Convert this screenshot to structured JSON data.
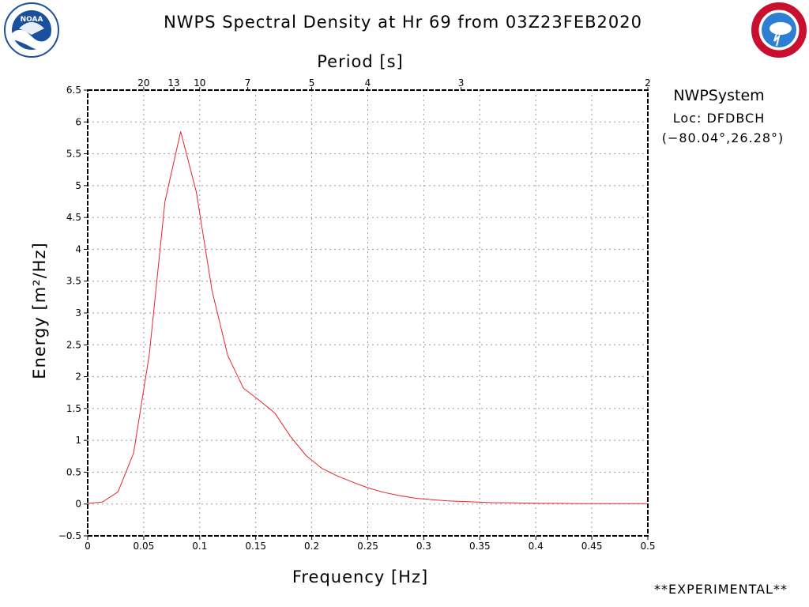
{
  "header": {
    "title": "NWPS Spectral Density at Hr 69 from 03Z23FEB2020"
  },
  "info": {
    "system": "NWPSystem",
    "location": "Loc: DFDBCH",
    "coordinates": "(−80.04°,26.28°)"
  },
  "footer": {
    "experimental": "**EXPERIMENTAL**"
  },
  "logos": {
    "left": {
      "icon": "noaa-logo-icon",
      "text": "NOAA",
      "color": "#1a4f9c"
    },
    "right": {
      "icon": "nws-logo-icon",
      "text": "NATIONAL WEATHER SERVICE",
      "color": "#c8102e"
    }
  },
  "colors": {
    "line": "#e8242b",
    "grid": "#9a9a9a",
    "frame": "#000000"
  },
  "chart_data": {
    "type": "line",
    "title": "NWPS Spectral Density at Hr 69 from 03Z23FEB2020",
    "xlabel": "Frequency [Hz]",
    "ylabel": "Energy [m²/Hz]",
    "top_axis_label": "Period [s]",
    "xlim": [
      0,
      0.5
    ],
    "ylim": [
      -0.5,
      6.5
    ],
    "x_ticks": [
      0,
      0.05,
      0.1,
      0.15,
      0.2,
      0.25,
      0.3,
      0.35,
      0.4,
      0.45,
      0.5
    ],
    "x_tick_labels": [
      "0",
      "0.05",
      "0.1",
      "0.15",
      "0.2",
      "0.25",
      "0.3",
      "0.35",
      "0.4",
      "0.45",
      "0.5"
    ],
    "y_ticks": [
      -0.5,
      0,
      0.5,
      1,
      1.5,
      2,
      2.5,
      3,
      3.5,
      4,
      4.5,
      5,
      5.5,
      6,
      6.5
    ],
    "y_tick_labels": [
      "−0.5",
      "0",
      "0.5",
      "1",
      "1.5",
      "2",
      "2.5",
      "3",
      "3.5",
      "4",
      "4.5",
      "5",
      "5.5",
      "6",
      "6.5"
    ],
    "period_ticks": [
      {
        "label": "20",
        "freq": 0.05
      },
      {
        "label": "13",
        "freq": 0.0769
      },
      {
        "label": "10",
        "freq": 0.1
      },
      {
        "label": "7",
        "freq": 0.1429
      },
      {
        "label": "5",
        "freq": 0.2
      },
      {
        "label": "4",
        "freq": 0.25
      },
      {
        "label": "3",
        "freq": 0.3333
      },
      {
        "label": "2",
        "freq": 0.5
      }
    ],
    "grid": true,
    "series": [
      {
        "color": "#e8242b",
        "x": [
          0,
          0.013,
          0.027,
          0.041,
          0.055,
          0.069,
          0.083,
          0.097,
          0.111,
          0.125,
          0.139,
          0.153,
          0.167,
          0.181,
          0.195,
          0.209,
          0.223,
          0.237,
          0.251,
          0.265,
          0.279,
          0.293,
          0.307,
          0.321,
          0.335,
          0.349,
          0.363,
          0.377,
          0.391,
          0.405,
          0.42,
          0.44,
          0.46,
          0.48,
          0.5
        ],
        "y": [
          0.01,
          0.03,
          0.19,
          0.8,
          2.35,
          4.75,
          5.85,
          4.9,
          3.35,
          2.33,
          1.82,
          1.63,
          1.43,
          1.06,
          0.76,
          0.56,
          0.44,
          0.34,
          0.25,
          0.18,
          0.13,
          0.09,
          0.07,
          0.05,
          0.04,
          0.03,
          0.02,
          0.02,
          0.015,
          0.01,
          0.01,
          0.005,
          0.005,
          0.005,
          0.005
        ]
      }
    ]
  }
}
